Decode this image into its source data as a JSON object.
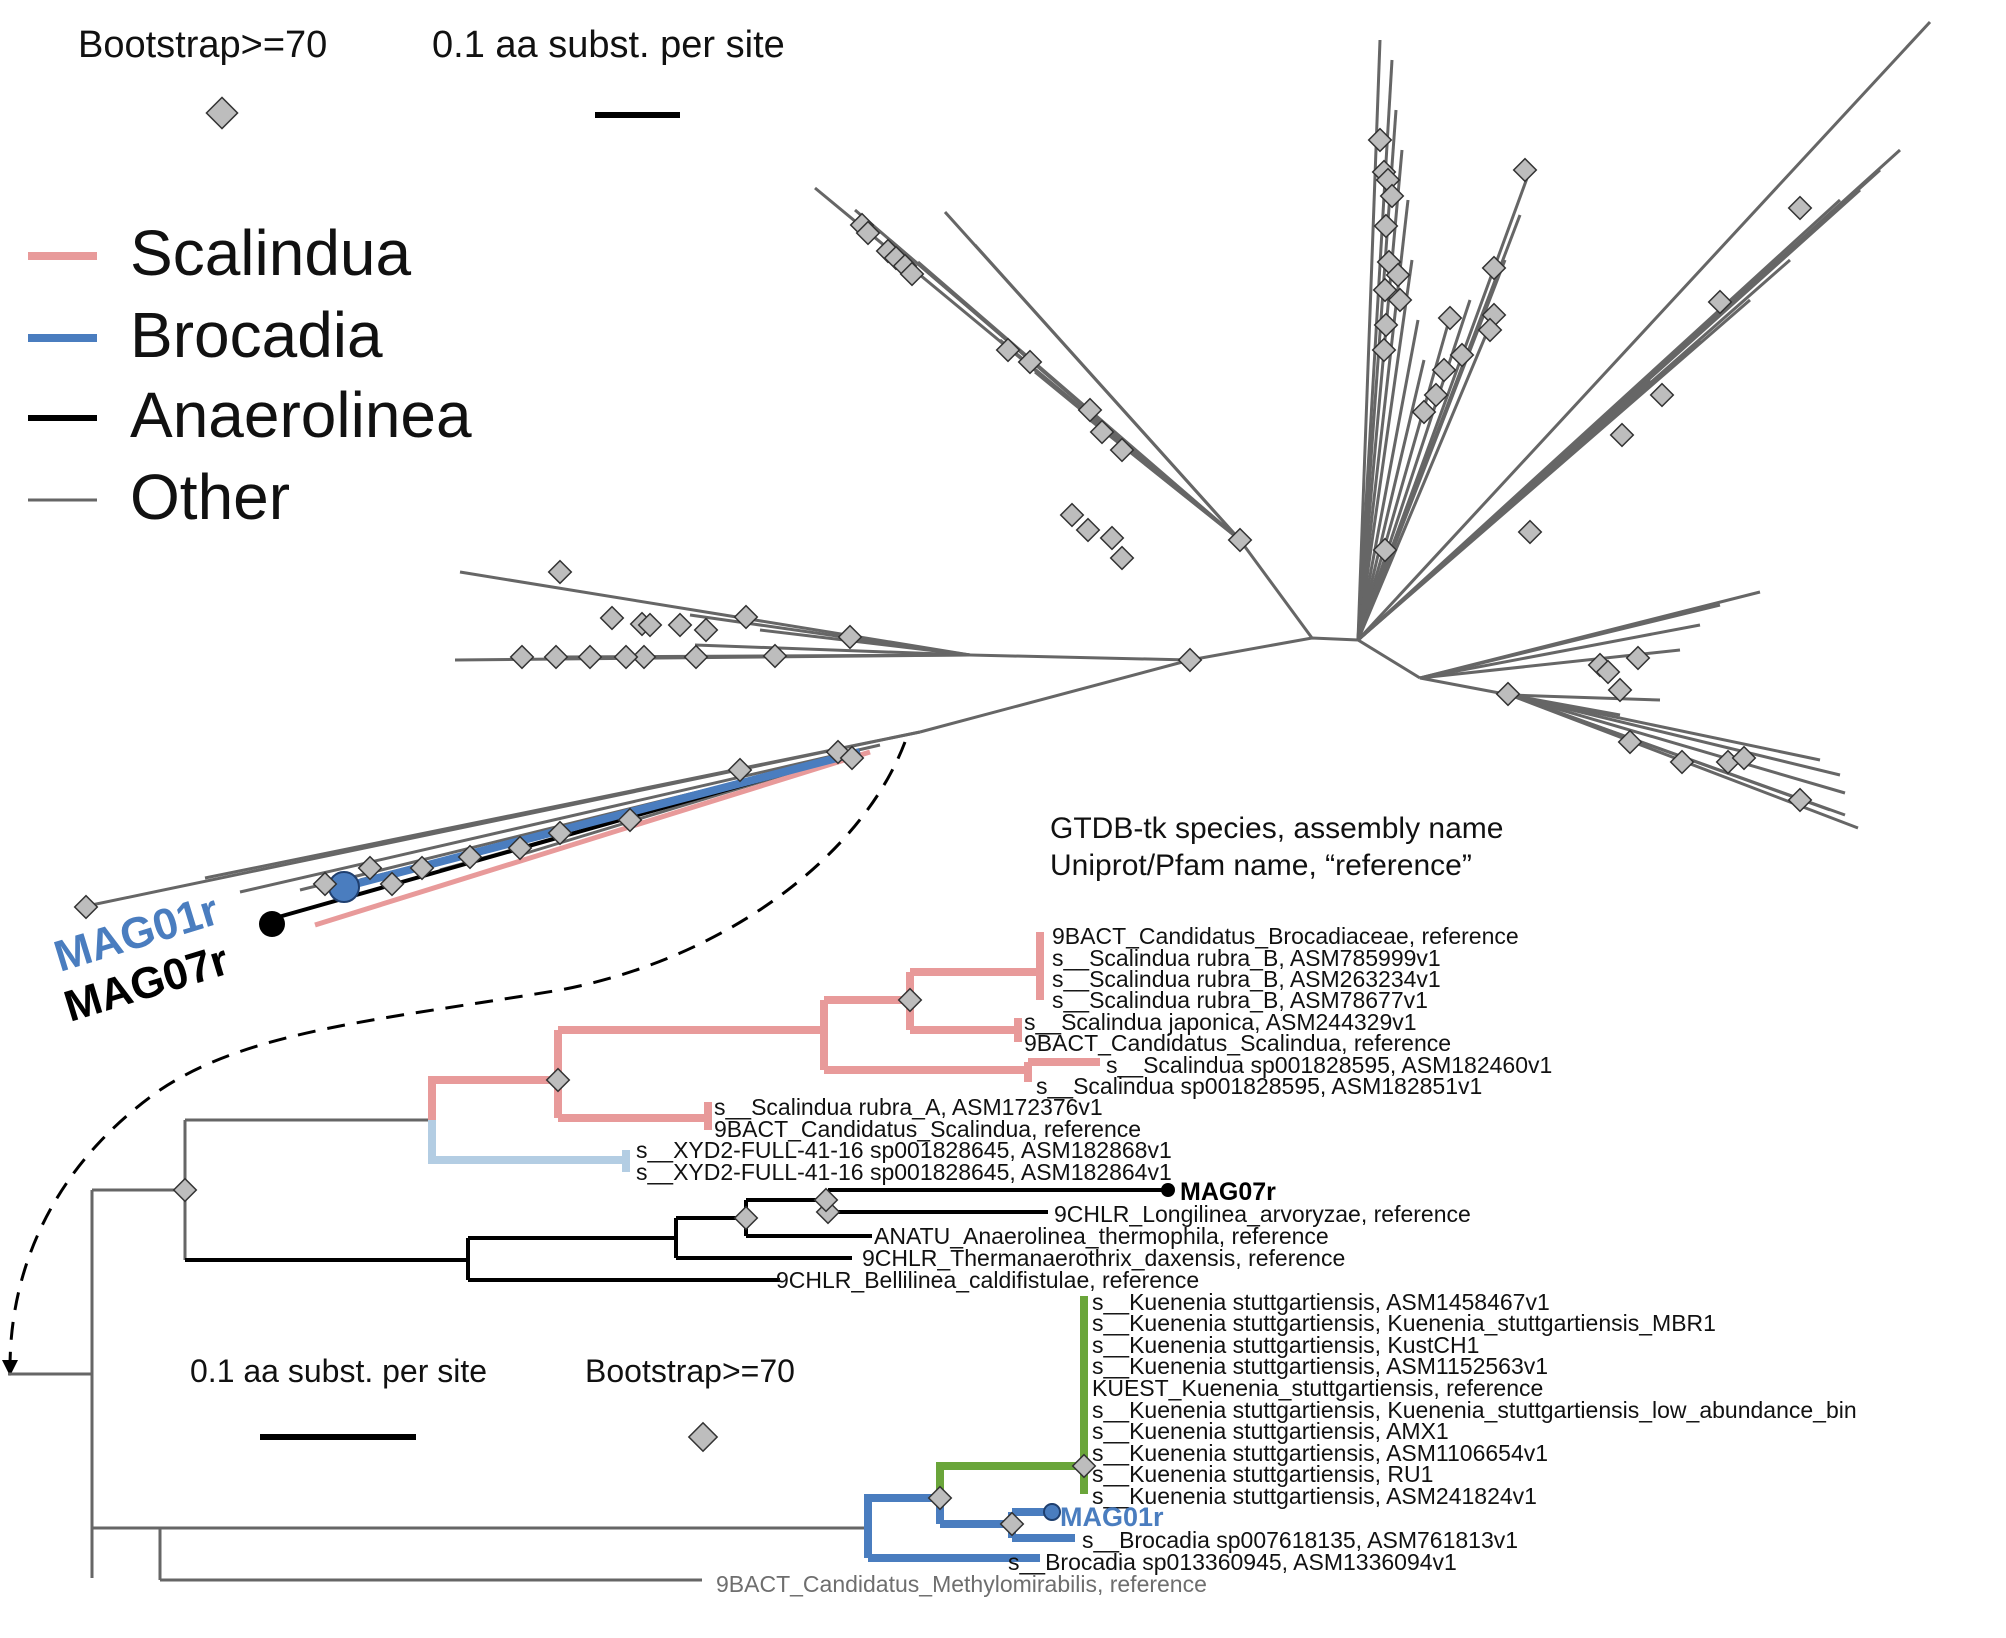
{
  "legend": {
    "items": [
      {
        "label": "Scalindua",
        "color": "#e89a9a"
      },
      {
        "label": "Brocadia",
        "color": "#4a7dbf"
      },
      {
        "label": "Anaerolinea",
        "color": "#000000"
      },
      {
        "label": "Other",
        "color": "#666666"
      }
    ]
  },
  "unrooted": {
    "bootstrap_label": "Bootstrap>=70",
    "scale_label": "0.1 aa subst. per site",
    "mag01r_label": "MAG01r",
    "mag07r_label": "MAG07r"
  },
  "rooted": {
    "header_line1": "GTDB-tk species, assembly name",
    "header_line2": "Uniprot/Pfam name, “reference”",
    "scale_label": "0.1 aa subst. per site",
    "bootstrap_label": "Bootstrap>=70",
    "tips": {
      "t01": "9BACT_Candidatus_Brocadiaceae, reference",
      "t02": "s__Scalindua rubra_B, ASM785999v1",
      "t03": "s__Scalindua rubra_B, ASM263234v1",
      "t04": "s__Scalindua rubra_B, ASM78677v1",
      "t05": "s__Scalindua japonica, ASM244329v1",
      "t06": "9BACT_Candidatus_Scalindua, reference",
      "t07": "s__Scalindua sp001828595, ASM182460v1",
      "t08": "s__Scalindua sp001828595, ASM182851v1",
      "t09": "s__Scalindua rubra_A, ASM172376v1",
      "t10": "9BACT_Candidatus_Scalindua, reference",
      "t11": "s__XYD2-FULL-41-16 sp001828645, ASM182868v1",
      "t12": "s__XYD2-FULL-41-16 sp001828645, ASM182864v1",
      "t13": "MAG07r",
      "t14": "9CHLR_Longilinea_arvoryzae, reference",
      "t15": "ANATU_Anaerolinea_thermophila, reference",
      "t16": "9CHLR_Thermanaerothrix_daxensis, reference",
      "t17": "9CHLR_Bellilinea_caldifistulae, reference",
      "t18": "s__Kuenenia stuttgartiensis, ASM1458467v1",
      "t19": "s__Kuenenia stuttgartiensis, Kuenenia_stuttgartiensis_MBR1",
      "t20": "s__Kuenenia stuttgartiensis, KustCH1",
      "t21": "s__Kuenenia stuttgartiensis, ASM1152563v1",
      "t22": "KUEST_Kuenenia_stuttgartiensis, reference",
      "t23": "s__Kuenenia stuttgartiensis, Kuenenia_stuttgartiensis_low_abundance_bin",
      "t24": "s__Kuenenia stuttgartiensis, AMX1",
      "t25": "s__Kuenenia stuttgartiensis, ASM1106654v1",
      "t26": "s__Kuenenia stuttgartiensis, RU1",
      "t27": "s__Kuenenia stuttgartiensis, ASM241824v1",
      "t28": "MAG01r",
      "t29": "s__Brocadia sp007618135, ASM761813v1",
      "t30": "s__Brocadia sp013360945, ASM1336094v1",
      "t31": "9BACT_Candidatus_Methylomirabilis, reference"
    }
  },
  "colors": {
    "scalindua": "#e89a9a",
    "brocadia": "#4a7dbf",
    "anaerolinea": "#000000",
    "other": "#666666",
    "xyd2": "#b3cde3",
    "kuenenia": "#6aa53a"
  }
}
